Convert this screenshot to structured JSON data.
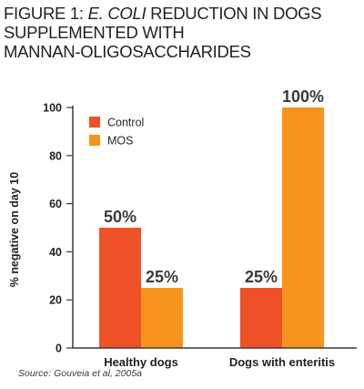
{
  "title": {
    "line1_prefix": "FIGURE 1: ",
    "line1_italic": "E. COLI",
    "line1_suffix": " REDUCTION IN DOGS",
    "line2": "SUPPLEMENTED WITH",
    "line3": "MANNAN-OLIGOSACCHARIDES"
  },
  "source": "Source: Gouveia et al, 2005a",
  "colors": {
    "control": "#ef5127",
    "mos": "#f7941d",
    "axis": "#3a3a3a",
    "text": "#231f20"
  },
  "chart_data": {
    "type": "bar",
    "categories": [
      "Healthy dogs",
      "Dogs with enteritis"
    ],
    "series": [
      {
        "name": "Control",
        "values": [
          50,
          25
        ],
        "labels": [
          "50%",
          "25%"
        ],
        "color": "#ef5127"
      },
      {
        "name": "MOS",
        "values": [
          25,
          100
        ],
        "labels": [
          "25%",
          "100%"
        ],
        "color": "#f7941d"
      }
    ],
    "title": "FIGURE 1: E. COLI REDUCTION IN DOGS SUPPLEMENTED WITH MANNAN-OLIGOSACCHARIDES",
    "xlabel": "",
    "ylabel": "% negative on day 10",
    "ylim": [
      0,
      100
    ],
    "yticks": [
      0,
      20,
      40,
      60,
      80,
      100
    ],
    "grid": false,
    "legend_position": "top-left"
  }
}
